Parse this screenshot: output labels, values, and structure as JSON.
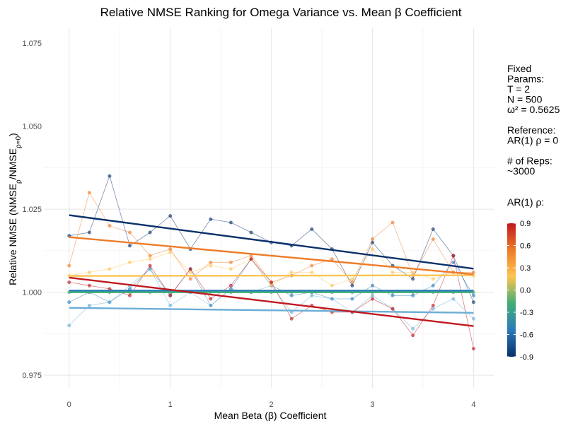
{
  "chart_data": {
    "type": "line",
    "title": "Relative NMSE Ranking for Omega Variance vs. Mean β Coefficient",
    "xlabel": "Mean Beta (β) Coefficient",
    "ylabel": "Relative NMSE (NMSEρ/NMSEρ=0)",
    "xlim": [
      -0.25,
      4.2
    ],
    "ylim": [
      0.9712,
      1.0795
    ],
    "x_ticks": [
      "0",
      "1",
      "2",
      "3",
      "4"
    ],
    "y_ticks": [
      "0.975",
      "1.000",
      "1.025",
      "1.050",
      "1.075"
    ],
    "grid": true,
    "reference_line": 1.0,
    "x": [
      0,
      0.2,
      0.4,
      0.6,
      0.8,
      1.0,
      1.2,
      1.4,
      1.6,
      1.8,
      2.0,
      2.2,
      2.4,
      2.6,
      2.8,
      3.0,
      3.2,
      3.4,
      3.6,
      3.8,
      4.0
    ],
    "series": [
      {
        "name": "-0.9",
        "color": "#08306b",
        "values": [
          1.017,
          1.018,
          1.035,
          1.014,
          1.018,
          1.023,
          1.013,
          1.022,
          1.021,
          1.018,
          1.015,
          1.014,
          1.019,
          1.013,
          1.002,
          1.015,
          1.008,
          1.004,
          1.019,
          1.011,
          0.997
        ],
        "trend": [
          1.0232,
          1.0071
        ]
      },
      {
        "name": "-0.6",
        "color": "#2b7bba",
        "values": [
          0.997,
          1.0,
          0.997,
          1.001,
          1.007,
          0.999,
          1.007,
          0.996,
          1.001,
          1.01,
          1.002,
          0.999,
          1.0,
          0.998,
          0.998,
          1.002,
          0.999,
          0.999,
          1.002,
          1.009,
          0.999
        ],
        "trend": [
          1.0005,
          1.0005
        ]
      },
      {
        "name": "-0.3",
        "color": "#6baed6",
        "values": [
          0.99,
          0.996,
          0.997,
          1.002,
          1.007,
          0.996,
          1.0,
          0.996,
          1.001,
          1.0,
          1.002,
          0.994,
          0.999,
          0.998,
          0.994,
          0.999,
          0.995,
          0.989,
          0.995,
          0.998,
          0.992
        ],
        "trend": [
          0.9953,
          0.9938
        ]
      },
      {
        "name": "0.0",
        "color": "#41ae76",
        "values": [
          1.0,
          1.0,
          1.0,
          1.0,
          1.0,
          1.0,
          1.0,
          1.0,
          1.0,
          1.0,
          1.0,
          1.0,
          1.0,
          1.0,
          1.0,
          1.0,
          1.0,
          1.0,
          1.0,
          1.0,
          1.0
        ],
        "trend": [
          1.0,
          1.0
        ]
      },
      {
        "name": "0.3",
        "color": "#fec44f",
        "values": [
          1.005,
          1.006,
          1.007,
          1.009,
          1.01,
          1.012,
          1.006,
          1.008,
          1.007,
          1.01,
          1.002,
          1.006,
          1.006,
          1.002,
          1.004,
          1.013,
          1.006,
          1.006,
          1.004,
          1.006,
          1.005
        ],
        "trend": [
          1.0049,
          1.0051
        ]
      },
      {
        "name": "0.6",
        "color": "#ee7b28",
        "values": [
          1.008,
          1.03,
          1.02,
          1.018,
          1.011,
          1.013,
          1.004,
          1.009,
          1.009,
          1.011,
          1.003,
          1.005,
          1.008,
          1.01,
          1.003,
          1.016,
          1.021,
          1.005,
          1.016,
          1.006,
          1.006
        ],
        "trend": [
          1.0166,
          1.0054
        ]
      },
      {
        "name": "0.9",
        "color": "#c0181e",
        "values": [
          1.003,
          1.002,
          1.001,
          0.999,
          1.008,
          0.999,
          1.007,
          0.998,
          1.002,
          1.01,
          1.003,
          0.992,
          0.996,
          0.994,
          0.994,
          0.998,
          0.995,
          0.987,
          0.996,
          1.011,
          0.983
        ],
        "trend": [
          1.0044,
          0.9898
        ]
      }
    ],
    "legend": {
      "placement": "right",
      "fixed_params_lines": [
        "Fixed",
        "Params:",
        "T = 2",
        "N = 500",
        "ω² = 0.5625"
      ],
      "reference_lines": [
        "Reference:",
        "AR(1) ρ = 0"
      ],
      "reps_lines": [
        "# of Reps:",
        "~3000"
      ],
      "colorbar_title": "AR(1) ρ:",
      "colorbar_ticks": [
        "0.9",
        "0.6",
        "0.3",
        "0.0",
        "-0.3",
        "-0.6",
        "-0.9"
      ],
      "colorbar_colors": [
        "#c0181e",
        "#ee7b28",
        "#fec44f",
        "#41ae76",
        "#2b7bba",
        "#08306b"
      ]
    }
  }
}
